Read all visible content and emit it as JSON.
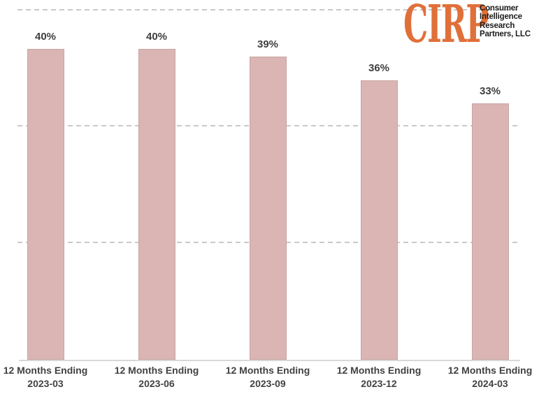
{
  "logo": {
    "wordmark": "CIRP",
    "wordmark_color": "#e0703a",
    "tagline_lines": [
      "Consumer",
      "Intelligence",
      "Research",
      "Partners, LLC"
    ],
    "tagline_color": "#1c1c1c"
  },
  "chart_data": {
    "type": "bar",
    "categories": [
      {
        "line1": "12 Months Ending",
        "line2": "2023-03"
      },
      {
        "line1": "12 Months Ending",
        "line2": "2023-06"
      },
      {
        "line1": "12 Months Ending",
        "line2": "2023-09"
      },
      {
        "line1": "12 Months Ending",
        "line2": "2023-12"
      },
      {
        "line1": "12 Months Ending",
        "line2": "2024-03"
      }
    ],
    "values": [
      40,
      40,
      39,
      36,
      33
    ],
    "value_labels": [
      "40%",
      "40%",
      "39%",
      "36%",
      "33%"
    ],
    "title": "",
    "xlabel": "",
    "ylabel": "",
    "unit": "%",
    "ylim": [
      0,
      46
    ],
    "gridlines_pct": [
      15,
      30,
      45
    ],
    "grid_style": "dashed",
    "legend": null,
    "bar_color": "#dbb5b3",
    "value_label_color": "#3f3f3f",
    "axis_label_color": "#424242",
    "gridline_color": "#c9c9c9",
    "axis_line_color": "#d8d8d8",
    "background_color": "#ffffff"
  }
}
